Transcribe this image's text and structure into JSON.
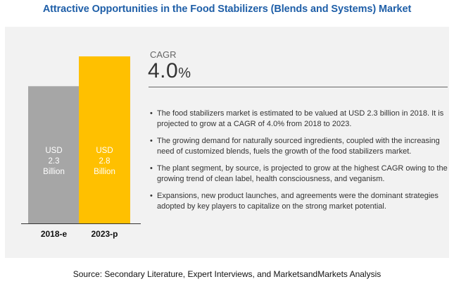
{
  "title": "Attractive Opportunities in the Food Stabilizers (Blends and Systems) Market",
  "cagr": {
    "label": "CAGR",
    "value": "4.0",
    "unit": "%"
  },
  "chart_data": {
    "type": "bar",
    "categories": [
      "2018-e",
      "2023-p"
    ],
    "values": [
      2.3,
      2.8
    ],
    "ylim": [
      0,
      2.8
    ],
    "bar_labels": [
      [
        "USD",
        "2.3",
        "Billion"
      ],
      [
        "USD",
        "2.8",
        "Billion"
      ]
    ],
    "colors": [
      "#a6a6a6",
      "#ffc000"
    ],
    "grid": false
  },
  "bullets": [
    "The food stabilizers market is estimated to be valued at USD 2.3 billion in 2018. It is projected to grow at a CAGR of 4.0% from 2018 to 2023.",
    "The growing demand for naturally sourced ingredients, coupled with the increasing need of customized blends, fuels the growth of the food stabilizers market.",
    "The plant segment, by source, is projected to grow at the highest CAGR owing to the growing trend of clean label, health consciousness, and veganism.",
    "Expansions, new product launches, and agreements were the dominant strategies adopted by key players to capitalize on the strong market potential."
  ],
  "source": "Source: Secondary Literature, Expert Interviews, and MarketsandMarkets Analysis"
}
